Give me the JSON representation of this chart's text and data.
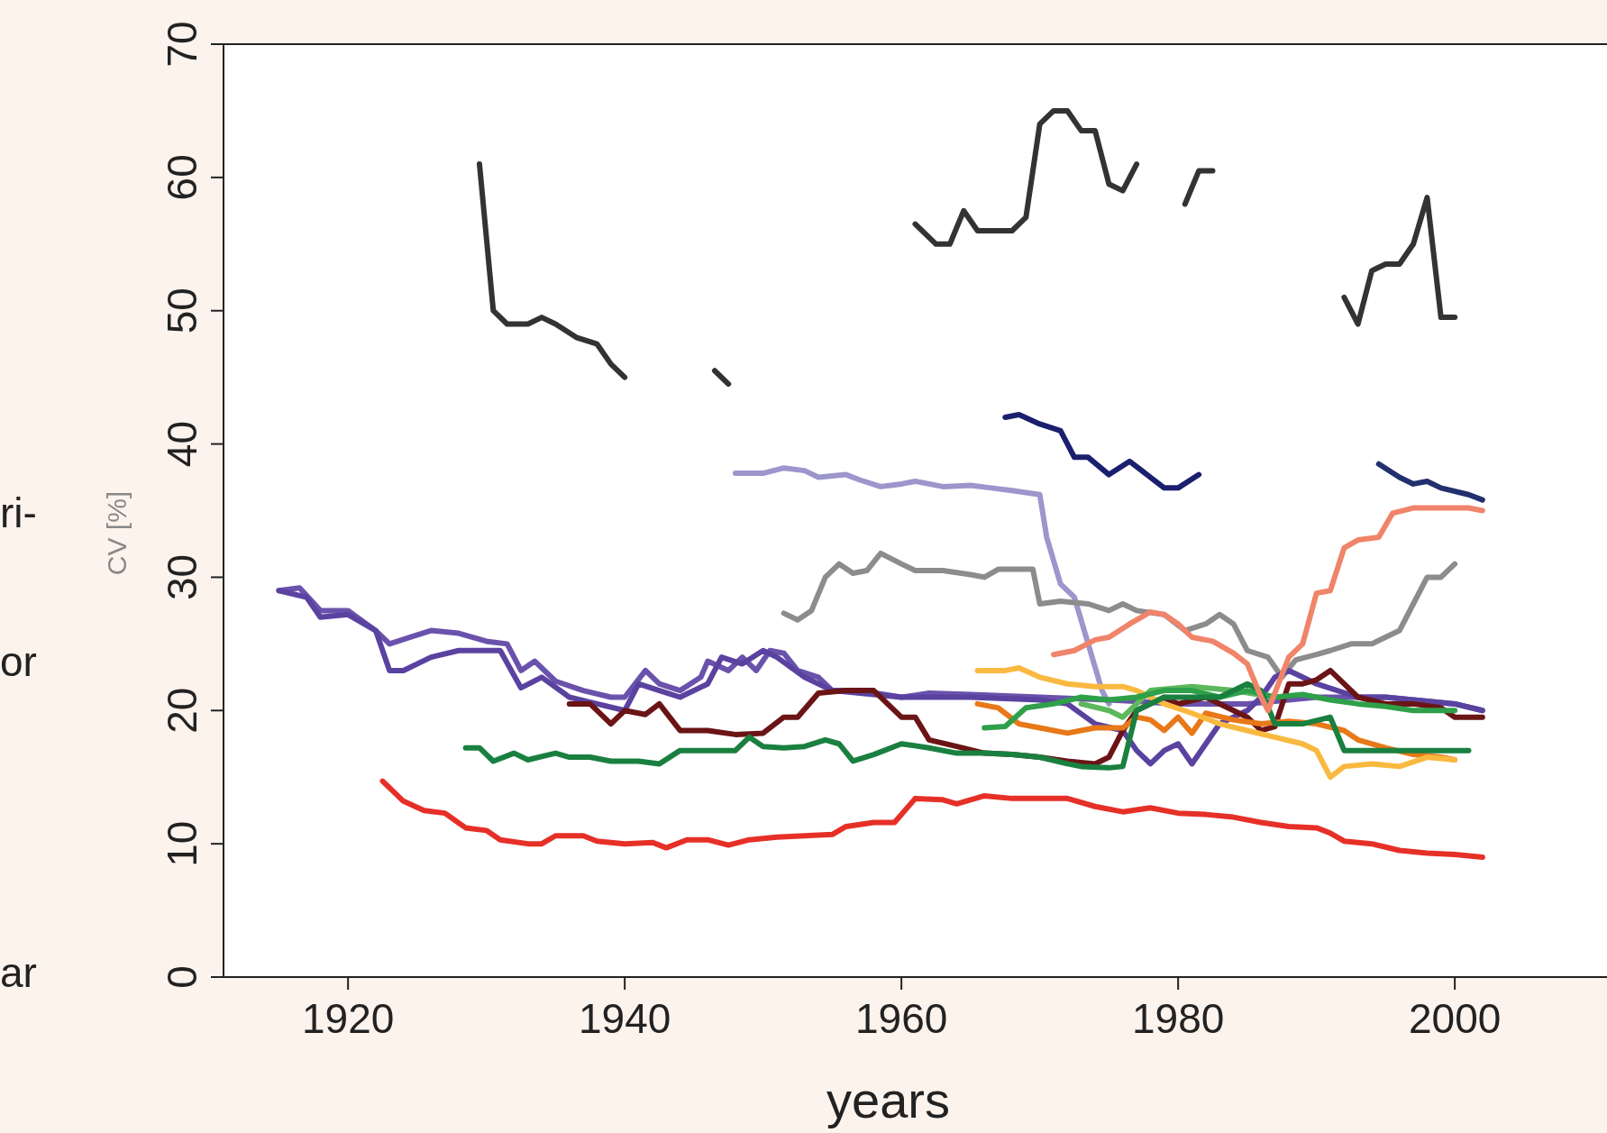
{
  "chart_data": {
    "type": "line",
    "xlabel": "years",
    "ylabel": "CV [%]",
    "xlim": [
      1911,
      2011
    ],
    "ylim": [
      0,
      70
    ],
    "xticks": [
      1920,
      1940,
      1960,
      1980,
      2000
    ],
    "yticks": [
      0,
      10,
      20,
      30,
      40,
      50,
      60,
      70
    ],
    "grid": false,
    "marker": "none",
    "line_style": "solid",
    "annotations": [
      "ri-",
      "or",
      "ar"
    ],
    "series": [
      {
        "color": "#333333",
        "x": [
          1929.5,
          1930.5,
          1931.5,
          1933,
          1934,
          1935,
          1936.5,
          1938,
          1939,
          1940,
          1943,
          1946.5,
          1947.5,
          1954,
          1961,
          1962.5,
          1963.5,
          1964.5,
          1965.5,
          1968,
          1969,
          1970,
          1971,
          1972,
          1973,
          1974,
          1975,
          1976,
          1977,
          1979,
          1980.5,
          1981.5,
          1982.5,
          1987,
          1992,
          1993,
          1994,
          1995,
          1996,
          1997,
          1998,
          1999,
          2000
        ],
        "values": [
          61,
          50,
          49,
          49,
          49.5,
          49,
          48,
          47.5,
          46,
          45,
          null,
          45.5,
          44.5,
          null,
          56.5,
          55,
          55,
          57.5,
          56,
          56,
          57,
          64,
          65,
          65,
          63.5,
          63.5,
          59.5,
          59,
          61,
          null,
          58,
          60.5,
          60.5,
          null,
          51,
          49,
          53,
          53.5,
          53.5,
          55,
          58.5,
          49.5,
          49.5
        ]
      },
      {
        "color": "#9c96cc",
        "x": [
          1948,
          1950,
          1951.5,
          1953,
          1954,
          1956,
          1957,
          1958.5,
          1960,
          1961,
          1963,
          1965,
          1966.5,
          1968,
          1970,
          1970.5,
          1971.5,
          1972.5,
          1973.5,
          1974.5,
          1975
        ],
        "values": [
          37.8,
          37.8,
          38.2,
          38,
          37.5,
          37.7,
          37.3,
          36.8,
          37,
          37.2,
          36.8,
          36.9,
          36.7,
          36.5,
          36.2,
          33,
          29.5,
          28.5,
          25,
          21.5,
          20.5
        ]
      },
      {
        "color": "#1a1f6e",
        "x": [
          1967.5,
          1968.5,
          1970,
          1971.5,
          1972.5,
          1973.5,
          1975,
          1976.5,
          1978,
          1979,
          1980,
          1981.5
        ],
        "values": [
          42,
          42.2,
          41.5,
          41,
          39,
          39,
          37.7,
          38.7,
          37.5,
          36.7,
          36.7,
          37.7
        ]
      },
      {
        "color": "#23306e",
        "x": [
          1994.5,
          1996,
          1997,
          1998,
          1999,
          2001,
          2002
        ],
        "values": [
          38.5,
          37.5,
          37,
          37.2,
          36.7,
          36.2,
          35.8
        ]
      },
      {
        "color": "#8c8c8c",
        "x": [
          1951.5,
          1952.5,
          1953.5,
          1954.5,
          1955.5,
          1956.5,
          1957.5,
          1958.5,
          1960,
          1961,
          1963,
          1965,
          1966,
          1967,
          1969.5,
          1970,
          1971.5,
          1973.5,
          1975,
          1976,
          1977,
          1979,
          1980.5,
          1982,
          1983,
          1984,
          1985,
          1986.5,
          1987.5,
          1988.5,
          1990,
          1991,
          1992.5,
          1994,
          1996,
          1997,
          1998,
          1999,
          2000
        ],
        "values": [
          27.3,
          26.8,
          27.5,
          30,
          31,
          30.3,
          30.5,
          31.8,
          31,
          30.5,
          30.5,
          30.2,
          30,
          30.6,
          30.6,
          28,
          28.2,
          28,
          27.5,
          28,
          27.5,
          27.2,
          26,
          26.5,
          27.2,
          26.5,
          24.5,
          24,
          22.5,
          23.8,
          24.2,
          24.5,
          25,
          25,
          26,
          28,
          30,
          30,
          31
        ]
      },
      {
        "color": "#6a52ac",
        "x": [
          1915,
          1916.5,
          1918,
          1919,
          1920,
          1922,
          1923,
          1924.5,
          1926,
          1928,
          1930,
          1931.5,
          1932.5,
          1933.5,
          1935,
          1937,
          1939,
          1940,
          1941.5,
          1942.5,
          1944,
          1945.5,
          1946,
          1947.5,
          1948.5,
          1949.5,
          1950.5,
          1951.5,
          1952.5,
          1954,
          1955,
          1957,
          1960,
          1962,
          1965,
          1970,
          1975,
          1980,
          1985,
          1990,
          1995,
          2000,
          2002
        ],
        "values": [
          29,
          29.2,
          27.5,
          27.5,
          27.5,
          26,
          25,
          25.5,
          26,
          25.8,
          25.2,
          25,
          23,
          23.7,
          22.2,
          21.5,
          21,
          21,
          23,
          22,
          21.5,
          22.5,
          23.7,
          23,
          24,
          23,
          24.5,
          24.3,
          23,
          22.5,
          21.5,
          21.5,
          21,
          21.3,
          21.2,
          21,
          20.8,
          20.5,
          20.5,
          21,
          21,
          20.5,
          20
        ]
      },
      {
        "color": "#5a42a0",
        "x": [
          1915,
          1917,
          1918,
          1920,
          1922,
          1923,
          1924,
          1926,
          1928,
          1931,
          1932.5,
          1934,
          1936,
          1938,
          1940,
          1941,
          1942.5,
          1944,
          1946,
          1947,
          1948.5,
          1950,
          1951,
          1953,
          1955,
          1960,
          1965,
          1970,
          1972,
          1974,
          1976,
          1977,
          1978,
          1979,
          1980,
          1981,
          1983,
          1985,
          1986,
          1987,
          1988,
          1989,
          1990,
          1993,
          1995,
          2000,
          2002
        ],
        "values": [
          29,
          28.5,
          27,
          27.2,
          26,
          23,
          23,
          24,
          24.5,
          24.5,
          21.7,
          22.5,
          21,
          20.5,
          20,
          22,
          21.5,
          21,
          22,
          24,
          23.5,
          24.5,
          24,
          22.5,
          21.5,
          21,
          21,
          20.8,
          20.5,
          19,
          18.5,
          17,
          16,
          17,
          17.5,
          16,
          19,
          20,
          21,
          22.5,
          23,
          22.5,
          22,
          21,
          21,
          20.5,
          20
        ]
      },
      {
        "color": "#6b1416",
        "x": [
          1936,
          1937.5,
          1939,
          1940,
          1941.5,
          1942.5,
          1944,
          1946,
          1948,
          1950,
          1951.5,
          1952.5,
          1954,
          1956,
          1958,
          1959,
          1960,
          1961,
          1962,
          1964,
          1966,
          1968,
          1970,
          1972,
          1974,
          1975,
          1976,
          1977,
          1978,
          1979,
          1980,
          1982,
          1984,
          1985,
          1986,
          1987,
          1988,
          1989,
          1990,
          1991,
          1992,
          1993,
          1995,
          1997,
          1999,
          2000,
          2002
        ],
        "values": [
          20.5,
          20.5,
          19,
          20,
          19.7,
          20.5,
          18.5,
          18.5,
          18.2,
          18.3,
          19.5,
          19.5,
          21.3,
          21.5,
          21.5,
          20.5,
          19.5,
          19.5,
          17.8,
          17.3,
          16.8,
          16.7,
          16.5,
          16.2,
          16,
          16.5,
          18.5,
          20,
          20.5,
          21,
          20.5,
          21,
          20,
          19.5,
          18.5,
          18.8,
          22,
          22,
          22.3,
          23,
          22,
          21,
          20.5,
          20.5,
          20.2,
          19.5,
          19.5
        ]
      },
      {
        "color": "#e87818",
        "x": [
          1965.5,
          1967,
          1968.5,
          1970,
          1972,
          1974,
          1976,
          1977,
          1978,
          1979,
          1980,
          1981,
          1982,
          1984,
          1986,
          1988,
          1990,
          1992,
          1993,
          1995,
          1997,
          1999,
          2000
        ],
        "values": [
          20.5,
          20.2,
          19,
          18.7,
          18.3,
          18.7,
          18.7,
          19.5,
          19.3,
          18.5,
          19.5,
          18.3,
          19.8,
          19.3,
          19,
          19.2,
          19,
          18.5,
          17.8,
          17.2,
          16.7,
          16.5,
          16.3
        ]
      },
      {
        "color": "#f9b940",
        "x": [
          1965.5,
          1967.5,
          1968.5,
          1970,
          1972,
          1974,
          1976,
          1977,
          1979,
          1981,
          1983,
          1985,
          1987,
          1989,
          1990,
          1991,
          1992,
          1994,
          1996,
          1998,
          2000
        ],
        "values": [
          23,
          23,
          23.2,
          22.5,
          22,
          21.8,
          21.8,
          21.5,
          20.5,
          19.8,
          19,
          18.5,
          18,
          17.5,
          17,
          15,
          15.8,
          16,
          15.8,
          16.5,
          16.3
        ]
      },
      {
        "color": "#5cb85c",
        "x": [
          1973,
          1975,
          1976,
          1978,
          1981,
          1984,
          1987
        ],
        "values": [
          20.5,
          20,
          19.5,
          21.5,
          21.8,
          21.5,
          21
        ]
      },
      {
        "color": "#2ea04a",
        "x": [
          1966,
          1967.5,
          1969,
          1971,
          1973,
          1975,
          1977,
          1979,
          1981,
          1983,
          1985,
          1987,
          1989,
          1991,
          1993,
          1995,
          1997,
          2000
        ],
        "values": [
          18.7,
          18.8,
          20.2,
          20.5,
          21,
          20.8,
          21,
          21.5,
          21.5,
          21,
          21.5,
          21,
          21.2,
          20.8,
          20.5,
          20.3,
          20,
          20
        ]
      },
      {
        "color": "#1a8040",
        "x": [
          1928.5,
          1929.5,
          1930.5,
          1932,
          1933,
          1935,
          1936,
          1937.5,
          1939,
          1941,
          1942.5,
          1944,
          1946,
          1948,
          1949,
          1950,
          1951.5,
          1953,
          1954.5,
          1955.5,
          1956.5,
          1958,
          1960,
          1962,
          1964,
          1966,
          1968,
          1970,
          1972,
          1973,
          1975,
          1976,
          1977,
          1979,
          1981,
          1983,
          1985,
          1986,
          1987,
          1989,
          1991,
          1992,
          1994,
          1997,
          1999,
          2001
        ],
        "values": [
          17.2,
          17.2,
          16.2,
          16.8,
          16.3,
          16.8,
          16.5,
          16.5,
          16.2,
          16.2,
          16,
          17,
          17,
          17,
          18,
          17.3,
          17.2,
          17.3,
          17.8,
          17.5,
          16.2,
          16.7,
          17.5,
          17.2,
          16.8,
          16.8,
          16.7,
          16.5,
          16,
          15.8,
          15.7,
          15.8,
          20,
          21,
          21,
          21,
          22,
          21.5,
          19,
          19,
          19.5,
          17,
          17,
          17,
          17,
          17
        ]
      },
      {
        "color": "#e63027",
        "x": [
          1922.5,
          1924,
          1925.5,
          1927,
          1928.5,
          1930,
          1931,
          1933,
          1934,
          1935,
          1937,
          1938,
          1940,
          1942,
          1943,
          1944.5,
          1946,
          1947.5,
          1949,
          1951,
          1953,
          1955,
          1956,
          1958,
          1959.5,
          1961,
          1963,
          1964,
          1966,
          1968,
          1972,
          1974,
          1976,
          1978,
          1980,
          1982,
          1984,
          1986,
          1988,
          1990,
          1991,
          1992,
          1994,
          1996,
          1998,
          2000,
          2002
        ],
        "values": [
          14.7,
          13.2,
          12.5,
          12.3,
          11.2,
          11,
          10.3,
          10,
          10,
          10.6,
          10.6,
          10.2,
          10,
          10.1,
          9.7,
          10.3,
          10.3,
          9.9,
          10.3,
          10.5,
          10.6,
          10.7,
          11.3,
          11.6,
          11.6,
          13.4,
          13.3,
          13,
          13.6,
          13.4,
          13.4,
          12.8,
          12.4,
          12.7,
          12.3,
          12.2,
          12,
          11.6,
          11.3,
          11.2,
          10.8,
          10.2,
          10,
          9.5,
          9.3,
          9.2,
          9
        ]
      },
      {
        "color": "#f0846a",
        "x": [
          1971,
          1972.5,
          1974,
          1975,
          1976.5,
          1978,
          1979,
          1980,
          1981,
          1982.5,
          1984,
          1985,
          1986,
          1986.5,
          1988,
          1989,
          1990,
          1991,
          1992,
          1993,
          1994.5,
          1995.5,
          1997,
          1999,
          2001,
          2002
        ],
        "values": [
          24.2,
          24.5,
          25.3,
          25.5,
          26.5,
          27.4,
          27.2,
          26.5,
          25.5,
          25.2,
          24.3,
          23.5,
          21,
          20,
          24,
          25,
          28.8,
          29,
          32.2,
          32.8,
          33,
          34.8,
          35.2,
          35.2,
          35.2,
          35
        ]
      }
    ]
  }
}
